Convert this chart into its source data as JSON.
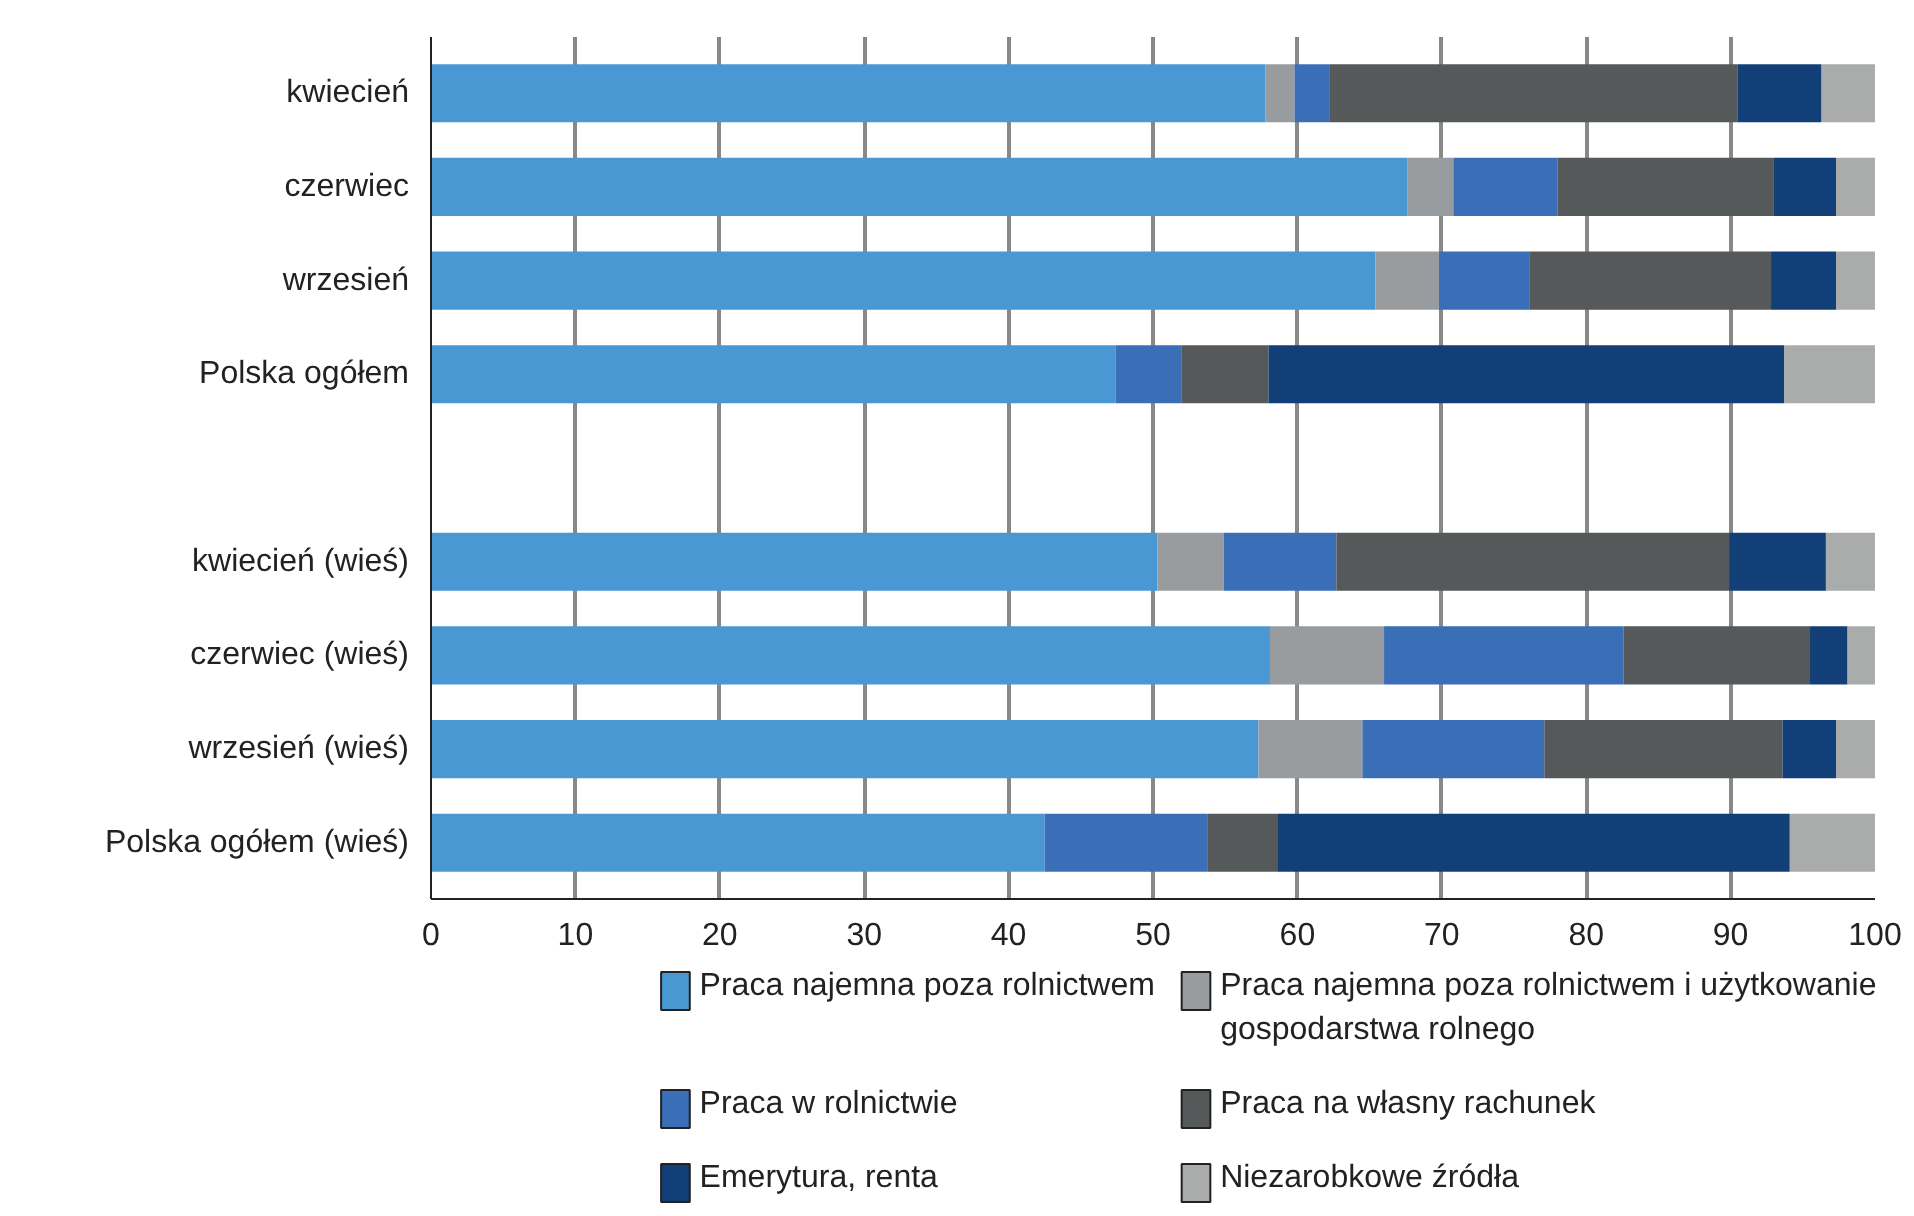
{
  "chart_data": {
    "type": "bar",
    "orientation": "horizontal",
    "stacked": true,
    "categories": [
      "kwiecień",
      "czerwiec",
      "wrzesień",
      "Polska ogółem",
      null,
      "kwiecień (wieś)",
      "czerwiec (wieś)",
      "wrzesień (wieś)",
      "Polska ogółem (wieś)"
    ],
    "series": [
      {
        "name": "Praca najemna poza rolnictwem",
        "color": "#4a98d3",
        "values": [
          57.8,
          67.6,
          65.4,
          47.4,
          null,
          50.3,
          58.1,
          57.3,
          42.5
        ]
      },
      {
        "name": "Praca najemna poza rolnictwem i użytkowanie gospodarstwa rolnego",
        "color": "#999c9e",
        "values": [
          2.0,
          3.2,
          4.4,
          0,
          null,
          4.6,
          7.9,
          7.2,
          0
        ]
      },
      {
        "name": "Praca w rolnictwie",
        "color": "#3a6fb7",
        "values": [
          2.4,
          7.2,
          6.3,
          4.6,
          null,
          7.8,
          16.6,
          12.6,
          11.3
        ]
      },
      {
        "name": "Praca na własny rachunek",
        "color": "#55595a",
        "values": [
          28.3,
          15.0,
          16.7,
          6.0,
          null,
          27.2,
          12.9,
          16.5,
          4.8
        ]
      },
      {
        "name": "Emerytura, renta",
        "color": "#123f77",
        "values": [
          5.8,
          4.3,
          4.5,
          35.7,
          null,
          6.7,
          2.6,
          3.7,
          35.5
        ]
      },
      {
        "name": "Niezarobkowe źródła",
        "color": "#aaabab",
        "values": [
          3.7,
          2.7,
          2.7,
          6.3,
          null,
          3.4,
          1.9,
          2.7,
          5.9
        ]
      }
    ],
    "xlim": [
      0,
      100
    ],
    "xticks": [
      0,
      10,
      20,
      30,
      40,
      50,
      60,
      70,
      80,
      90,
      100
    ],
    "grid": "x",
    "legend": "bottom"
  }
}
